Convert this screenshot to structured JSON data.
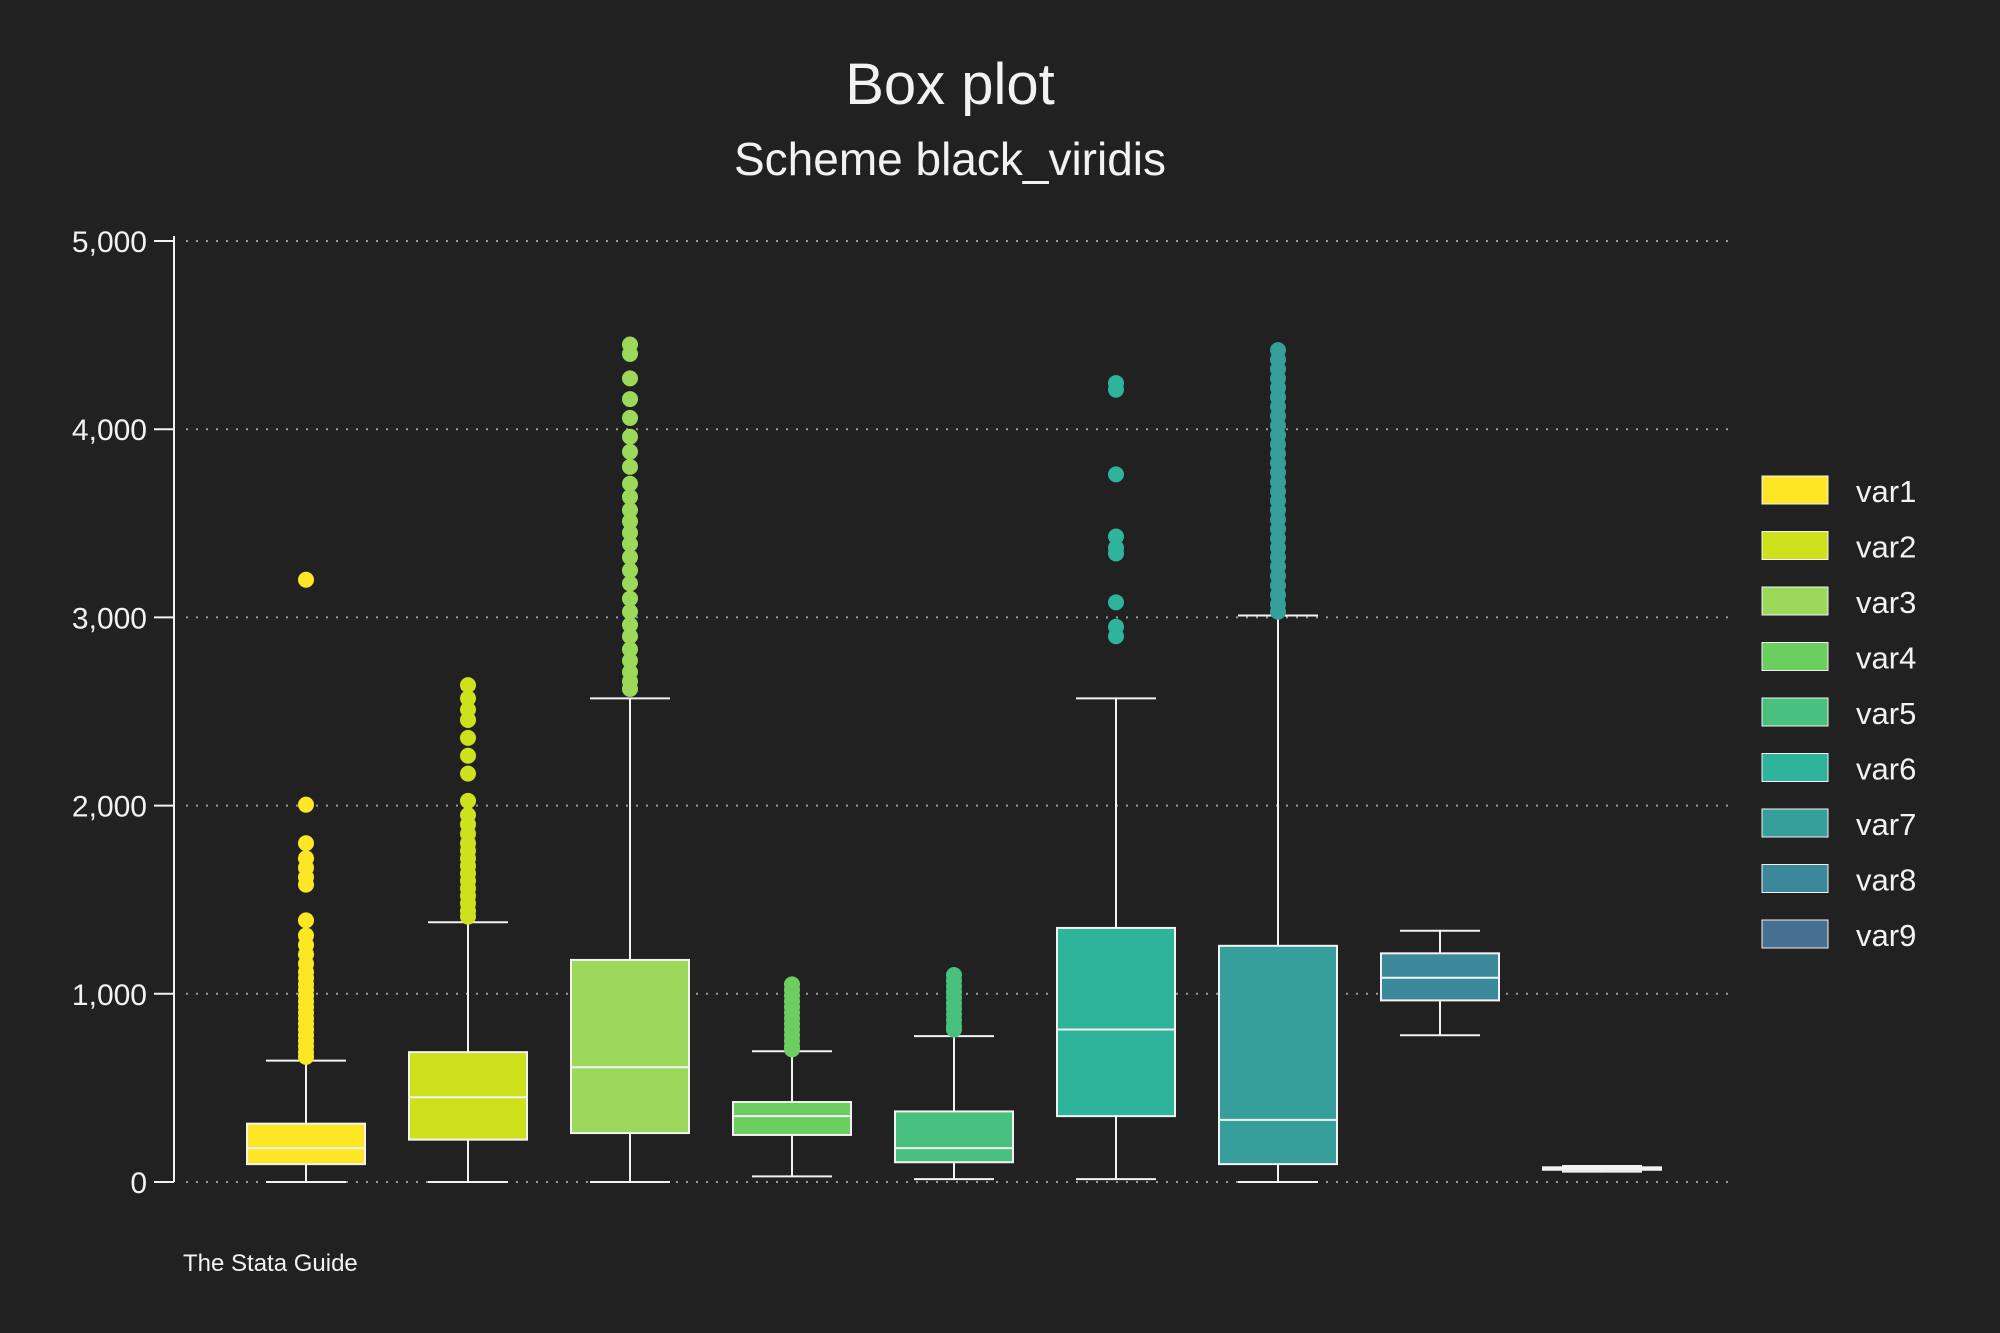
{
  "chart_data": {
    "type": "box",
    "title": "Box plot",
    "subtitle": "Scheme black_viridis",
    "note": "The Stata Guide",
    "xlabel": "",
    "ylabel": "",
    "ylim": [
      0,
      5000
    ],
    "yticks": [
      0,
      1000,
      2000,
      3000,
      4000,
      5000
    ],
    "ytick_labels": [
      "0",
      "1,000",
      "2,000",
      "3,000",
      "4,000",
      "5,000"
    ],
    "grid": true,
    "legend_position": "right",
    "series": [
      {
        "name": "var1",
        "color": "#fde725",
        "min": 0,
        "q1": 95,
        "median": 180,
        "q3": 310,
        "max": 645,
        "outliers": [
          3200,
          2005,
          1800,
          1720,
          1670,
          1620,
          1580,
          1390,
          1310,
          1260,
          1210,
          1160,
          1115,
          1085,
          1050,
          1020,
          990,
          960,
          930,
          900,
          870,
          840,
          810,
          780,
          750,
          720,
          690,
          665
        ]
      },
      {
        "name": "var2",
        "color": "#cde11d",
        "min": 0,
        "q1": 225,
        "median": 450,
        "q3": 690,
        "max": 1380,
        "outliers": [
          2640,
          2570,
          2510,
          2455,
          2360,
          2265,
          2170,
          2025,
          1950,
          1900,
          1850,
          1800,
          1760,
          1720,
          1680,
          1640,
          1600,
          1560,
          1520,
          1480,
          1440,
          1410
        ]
      },
      {
        "name": "var3",
        "color": "#9cd85a",
        "min": 0,
        "q1": 260,
        "median": 610,
        "q3": 1180,
        "max": 2570,
        "outliers": [
          4450,
          4400,
          4270,
          4160,
          4060,
          3960,
          3880,
          3800,
          3710,
          3640,
          3570,
          3510,
          3450,
          3390,
          3320,
          3250,
          3180,
          3100,
          3030,
          2960,
          2900,
          2830,
          2770,
          2710,
          2660,
          2620
        ]
      },
      {
        "name": "var4",
        "color": "#6cce5f",
        "min": 30,
        "q1": 250,
        "median": 350,
        "q3": 425,
        "max": 695,
        "outliers": [
          1050,
          1020,
          990,
          960,
          930,
          900,
          870,
          840,
          810,
          780,
          750,
          720,
          705
        ]
      },
      {
        "name": "var5",
        "color": "#48c07e",
        "min": 15,
        "q1": 105,
        "median": 180,
        "q3": 375,
        "max": 775,
        "outliers": [
          1100,
          1070,
          1040,
          1010,
          980,
          950,
          920,
          890,
          860,
          830,
          810
        ]
      },
      {
        "name": "var6",
        "color": "#2db49a",
        "min": 15,
        "q1": 350,
        "median": 810,
        "q3": 1350,
        "max": 2570,
        "outliers": [
          4245,
          4210,
          3760,
          3430,
          3370,
          3340,
          3080,
          2950,
          2900
        ]
      },
      {
        "name": "var7",
        "color": "#369e9b",
        "min": 0,
        "q1": 95,
        "median": 330,
        "q3": 1255,
        "max": 3010,
        "outliers": [
          4420,
          4370,
          4320,
          4270,
          4220,
          4170,
          4120,
          4070,
          4020,
          3970,
          3920,
          3870,
          3820,
          3770,
          3720,
          3670,
          3620,
          3570,
          3520,
          3470,
          3420,
          3370,
          3320,
          3270,
          3220,
          3170,
          3120,
          3070,
          3030
        ]
      },
      {
        "name": "var8",
        "color": "#3b889a",
        "min": 780,
        "q1": 965,
        "median": 1085,
        "q3": 1215,
        "max": 1335,
        "outliers": []
      },
      {
        "name": "var9",
        "color": "#466f91",
        "min": 55,
        "q1": 65,
        "median": 72,
        "q3": 78,
        "max": 85,
        "outliers": []
      }
    ]
  }
}
